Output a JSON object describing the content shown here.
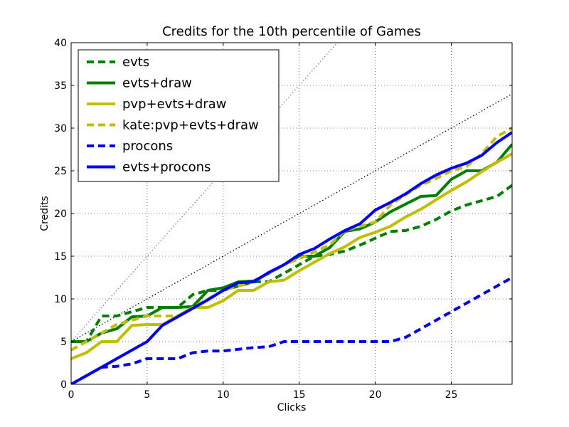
{
  "chart_data": {
    "type": "line",
    "title": "Credits for the 10th percentile of Games",
    "xlabel": "Clicks",
    "ylabel": "Credits",
    "xlim": [
      0,
      29
    ],
    "ylim": [
      0,
      40
    ],
    "x_ticks": [
      0,
      5,
      10,
      15,
      20,
      25
    ],
    "y_ticks": [
      0,
      5,
      10,
      15,
      20,
      25,
      30,
      35,
      40
    ],
    "grid": true,
    "legend_position": "top-left",
    "x": [
      0,
      1,
      2,
      3,
      4,
      5,
      6,
      7,
      8,
      9,
      10,
      11,
      12,
      13,
      14,
      15,
      16,
      17,
      18,
      19,
      20,
      21,
      22,
      23,
      24,
      25,
      26,
      27,
      28,
      29
    ],
    "series": [
      {
        "name": "evts",
        "color": "#008000",
        "dash": "dashed",
        "values": [
          5,
          5,
          8,
          8,
          8.5,
          9,
          9,
          9,
          10.5,
          11,
          11,
          11.5,
          12,
          12,
          13,
          14,
          15,
          15.2,
          15.6,
          16.3,
          17.1,
          17.9,
          18,
          18.5,
          19.3,
          20.3,
          21,
          21.5,
          22,
          23.3
        ]
      },
      {
        "name": "evts+draw",
        "color": "#008000",
        "dash": "solid",
        "values": [
          5,
          5,
          6,
          6.5,
          7.9,
          8,
          9,
          9,
          9.1,
          11,
          11.3,
          12,
          12.1,
          13,
          14,
          15,
          15,
          16,
          17.9,
          18.2,
          19,
          20.2,
          21.1,
          22,
          22.1,
          24,
          25,
          25,
          26,
          28.1
        ]
      },
      {
        "name": "pvp+evts+draw",
        "color": "#bfbf00",
        "dash": "solid",
        "values": [
          3,
          3.7,
          5,
          5,
          6.9,
          7,
          7,
          8,
          9,
          9,
          9.8,
          11,
          11,
          12,
          12.2,
          13.3,
          14.3,
          15.3,
          16.1,
          17.2,
          17.8,
          18.5,
          19.6,
          20.5,
          21.6,
          22.7,
          23.7,
          24.9,
          26,
          27
        ]
      },
      {
        "name": "kate:pvp+evts+draw",
        "color": "#bfbf00",
        "dash": "dashed",
        "values": [
          4,
          5,
          6,
          7,
          7.5,
          8,
          8,
          8,
          9,
          10,
          11,
          11.5,
          12,
          13,
          14,
          14.7,
          15.5,
          16.3,
          18,
          18.5,
          19,
          21,
          22.2,
          23.3,
          24.1,
          25,
          25.5,
          27,
          29,
          30
        ]
      },
      {
        "name": "procons",
        "color": "#0000ff",
        "dash": "dashed",
        "values": [
          0,
          1,
          2,
          2.1,
          2.4,
          3,
          3,
          3,
          3.7,
          3.9,
          3.9,
          4.1,
          4.3,
          4.4,
          5,
          5,
          5,
          5,
          5,
          5,
          5,
          5,
          5.5,
          6.5,
          7.5,
          8.5,
          9.5,
          10.5,
          11.5,
          12.5
        ]
      },
      {
        "name": "evts+procons",
        "color": "#0000ff",
        "dash": "solid",
        "values": [
          0,
          1,
          2,
          3,
          4,
          5,
          6.9,
          7.9,
          8.9,
          9.9,
          11,
          11.9,
          12,
          13.1,
          14,
          15.2,
          15.9,
          17,
          18,
          18.8,
          20.4,
          21.3,
          22.3,
          23.5,
          24.5,
          25.3,
          25.9,
          26.8,
          28.3,
          29.5
        ]
      }
    ],
    "reference_lines": [
      {
        "slope": 2,
        "intercept": 5,
        "color": "#808080",
        "dash": "dotted"
      },
      {
        "slope": 1,
        "intercept": 5,
        "color": "#000000",
        "dash": "dotted"
      }
    ]
  }
}
